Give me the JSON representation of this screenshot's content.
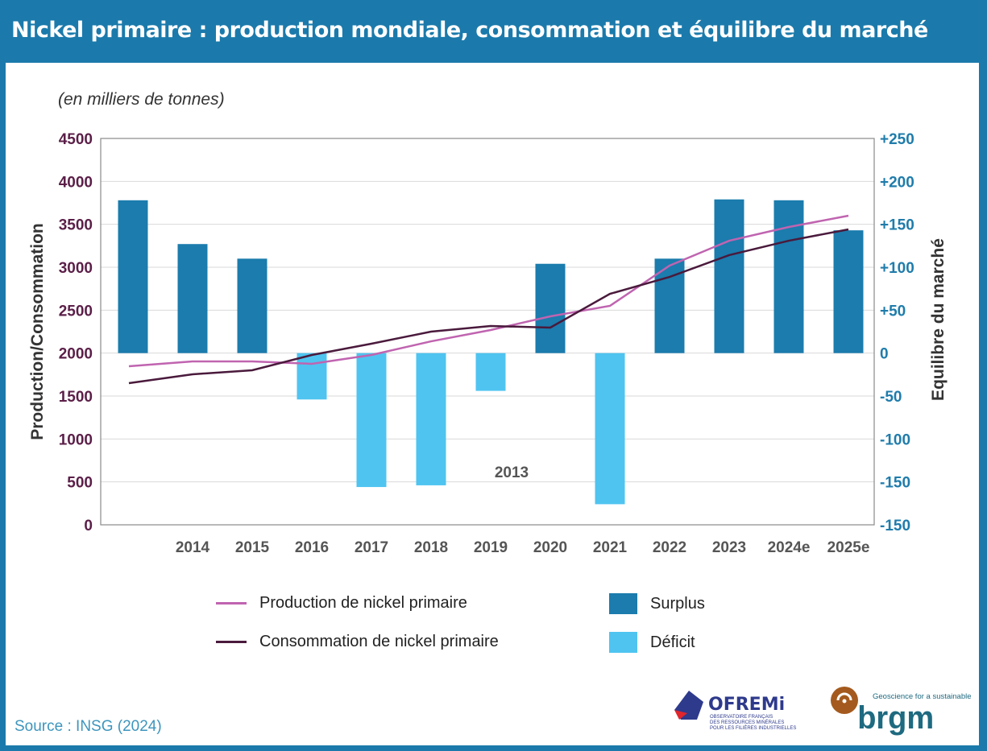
{
  "title": "Nickel primaire : production mondiale, consommation et équilibre du marché",
  "source": "Source : INSG (2024)",
  "logos": {
    "ofremi": "OFREMi",
    "ofremi_sub": [
      "OBSERVATOIRE FRANÇAIS",
      "DES RESSOURCES MINÉRALES",
      "POUR LES FILIÈRES INDUSTRIELLES"
    ],
    "brgm": "brgm",
    "brgm_tagline": "Geoscience for a sustainable Earth"
  },
  "chart_data": {
    "type": "bar+line",
    "unit_note": "(en milliers de tonnes)",
    "ylabel_left": "Production/Consommation",
    "ylabel_right": "Equilibre du marché",
    "ylim_left": [
      0,
      4500
    ],
    "left_ticks": [
      "4500",
      "4000",
      "3500",
      "3000",
      "2500",
      "2000",
      "1500",
      "1000",
      "500",
      "0"
    ],
    "right_ticks": [
      "+250",
      "+200",
      "+150",
      "+100",
      "+50",
      "0",
      "-50",
      "-100",
      "-150",
      "-150"
    ],
    "grid": true,
    "categories": [
      "2013",
      "2014",
      "2015",
      "2016",
      "2017",
      "2018",
      "2019",
      "2020",
      "2021",
      "2022",
      "2023",
      "2024e",
      "2025e"
    ],
    "x_tick_labels": [
      "",
      "2014",
      "2015",
      "2016",
      "2017",
      "2018",
      "2019",
      "2020",
      "2021",
      "2022",
      "2023",
      "2024e",
      "2025e"
    ],
    "stray_label": "2013",
    "balance": [
      178,
      127,
      110,
      -54,
      -156,
      -154,
      -44,
      104,
      -176,
      110,
      179,
      178,
      143
    ],
    "series": [
      {
        "name": "Production de nickel primaire",
        "color": "#c064b0",
        "values": [
          1847,
          1903,
          1903,
          1875,
          1978,
          2137,
          2269,
          2428,
          2550,
          3019,
          3309,
          3469,
          3600
        ]
      },
      {
        "name": "Consommation de nickel primaire",
        "color": "#4a1a3c",
        "values": [
          1650,
          1753,
          1800,
          1978,
          2109,
          2250,
          2316,
          2297,
          2690,
          2887,
          3141,
          3309,
          3441
        ]
      }
    ],
    "bar_legend": [
      {
        "name": "Surplus",
        "color": "#1b7cad"
      },
      {
        "name": "Déficit",
        "color": "#4fc4f0"
      }
    ],
    "legend_position": "bottom"
  }
}
